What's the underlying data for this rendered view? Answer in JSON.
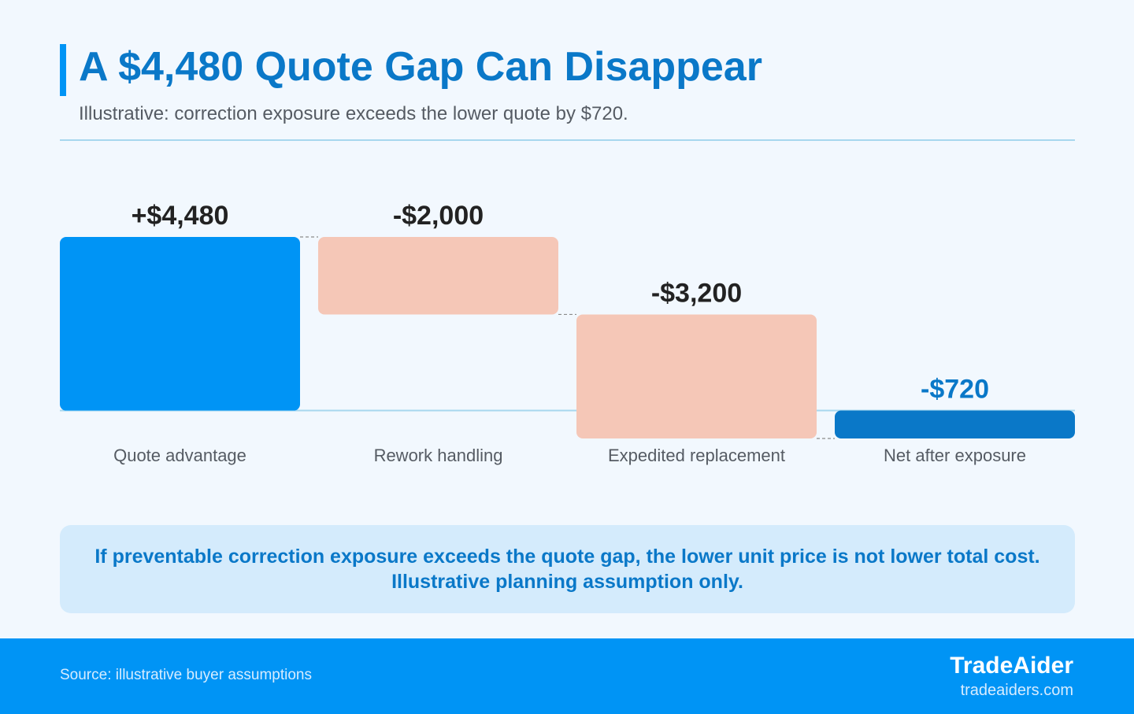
{
  "header": {
    "title": "A $4,480 Quote Gap Can Disappear",
    "subtitle": "Illustrative: correction exposure exceeds the lower quote by $720."
  },
  "chart_data": {
    "type": "bar",
    "subtype": "waterfall",
    "categories": [
      "Quote advantage",
      "Rework handling",
      "Expedited replacement",
      "Net after exposure"
    ],
    "values": [
      4480,
      -2000,
      -3200,
      -720
    ],
    "value_labels": [
      "+$4,480",
      "-$2,000",
      "-$3,200",
      "-$720"
    ],
    "bar_kinds": [
      "increase",
      "decrease",
      "decrease",
      "total"
    ],
    "ylim": [
      -720,
      4480
    ],
    "grid": false,
    "colors": {
      "increase": "#0094f5",
      "decrease": "#f5c7b7",
      "total": "#0a78c8",
      "baseline": "#a7d7ee",
      "connector": "#8a8a8a",
      "label": "#222222",
      "total_label": "#0a78c8",
      "category": "#555b63"
    }
  },
  "note": {
    "line1": "If preventable correction exposure exceeds the quote gap, the lower unit price is not lower total cost.",
    "line2": "Illustrative planning assumption only."
  },
  "footer": {
    "source": "Source: illustrative buyer assumptions",
    "brand": "TradeAider",
    "url": "tradeaiders.com"
  }
}
